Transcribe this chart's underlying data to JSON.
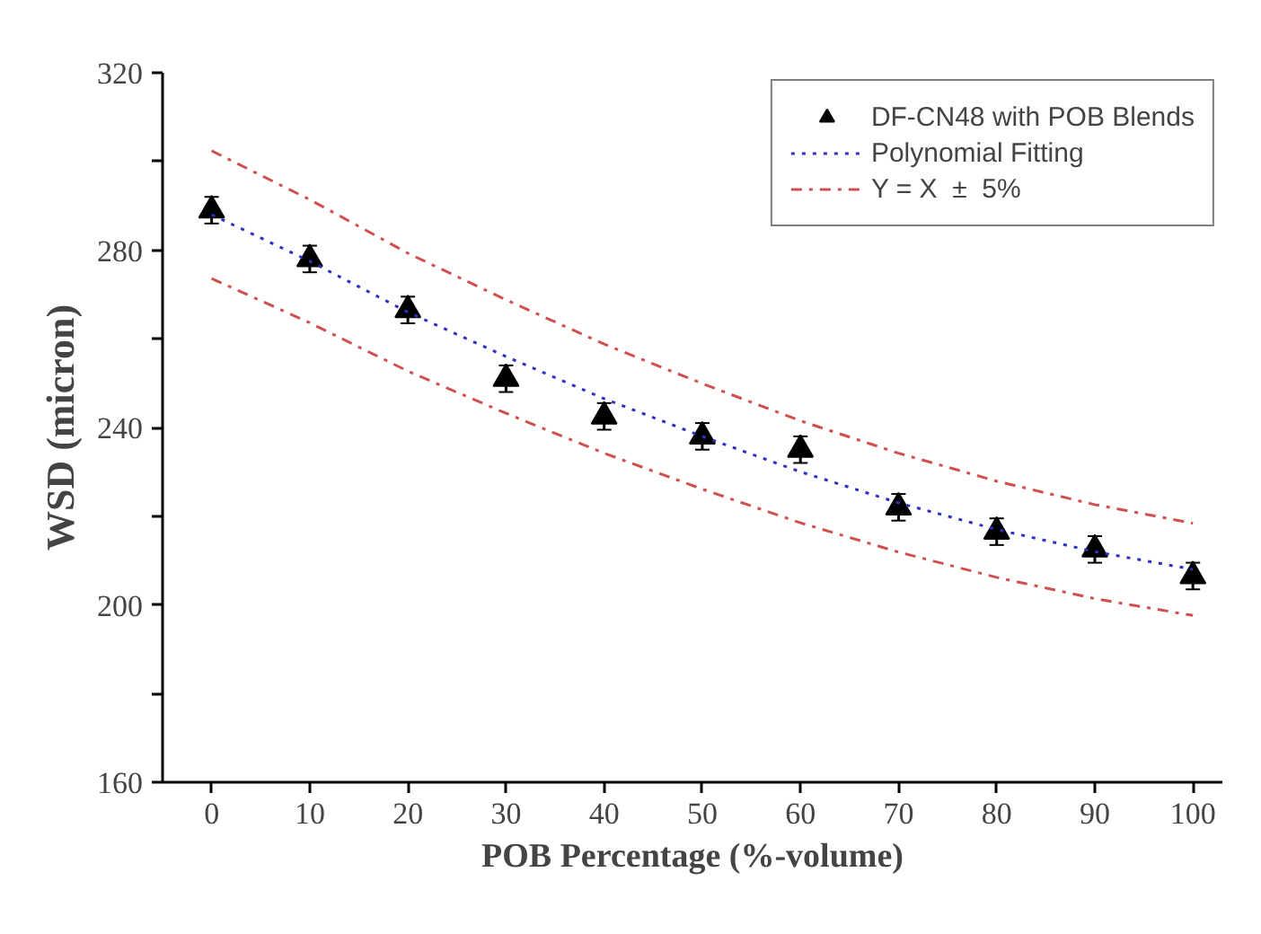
{
  "chart_data": {
    "type": "scatter",
    "xlabel": "POB Percentage (%-volume)",
    "ylabel": "WSD (micron)",
    "x": [
      0,
      10,
      20,
      30,
      40,
      50,
      60,
      70,
      80,
      90,
      100
    ],
    "xlim": [
      -5,
      103
    ],
    "xticks": [
      0,
      10,
      20,
      30,
      40,
      50,
      60,
      70,
      80,
      90,
      100
    ],
    "ylim": [
      160,
      320
    ],
    "yticks": [
      160,
      {
        "value": 180,
        "label": null
      },
      200,
      {
        "value": 220,
        "label": null
      },
      240,
      {
        "value": 260,
        "label": null
      },
      280,
      {
        "value": 300,
        "label": null
      },
      320
    ],
    "grid": false,
    "legend": "top right",
    "series": [
      {
        "name": "DF-CN48 with POB Blends",
        "marker": "triangle",
        "color": "#000000",
        "values": [
          289,
          278,
          266.5,
          251,
          242.5,
          238,
          235,
          222,
          216.5,
          212.5,
          206.5
        ],
        "errors": [
          3,
          3,
          3,
          3,
          3,
          3,
          3,
          3,
          3,
          3,
          3
        ]
      },
      {
        "name": "Polynomial Fitting",
        "type": "line",
        "line_style": "dotted",
        "marker": "none",
        "color": "#3030c0",
        "values": [
          288,
          277.5,
          266,
          256,
          246.5,
          238,
          230,
          223,
          217,
          212,
          208
        ]
      },
      {
        "name": "Y = X  ±  5%",
        "type": "line",
        "line_style": "dashed",
        "marker": "none",
        "color": "#d05050",
        "values": [
          302.4,
          291.4,
          279.3,
          268.8,
          258.8,
          249.9,
          241.5,
          234.2,
          227.9,
          222.6,
          218.4
        ]
      },
      {
        "type": "line",
        "line_style": "dashed",
        "marker": "none",
        "color": "#d05050",
        "values": [
          273.6,
          263.6,
          252.7,
          243.2,
          234.2,
          226.1,
          218.5,
          211.9,
          206.2,
          201.4,
          197.6
        ]
      }
    ]
  }
}
